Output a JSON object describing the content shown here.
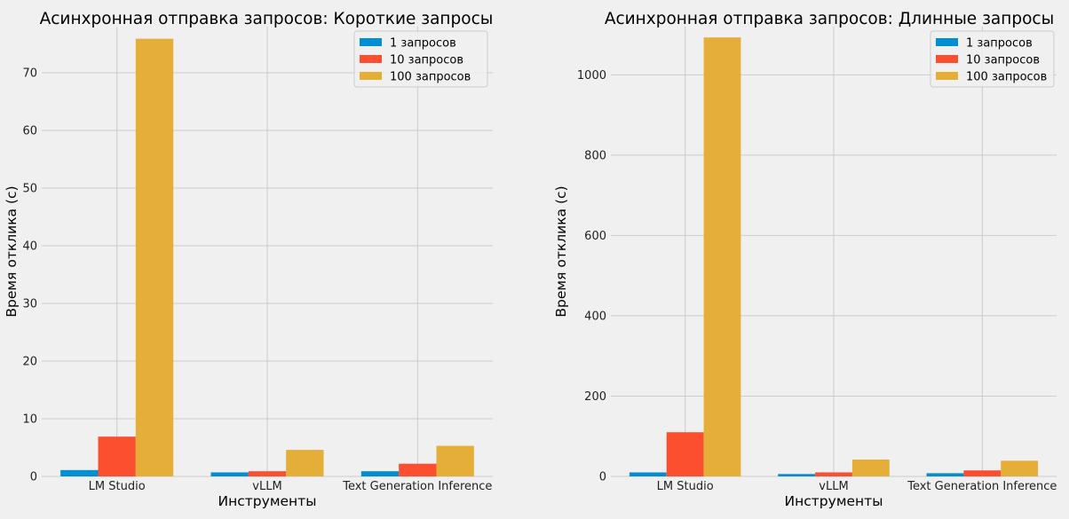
{
  "chart_data": [
    {
      "type": "bar",
      "title": "Асинхронная отправка запросов: Короткие запросы",
      "xlabel": "Инструменты",
      "ylabel": "Время отклика (с)",
      "categories": [
        "LM Studio",
        "vLLM",
        "Text Generation Inference"
      ],
      "series": [
        {
          "name": "1 запросов",
          "values": [
            1.1,
            0.7,
            0.9
          ]
        },
        {
          "name": "10 запросов",
          "values": [
            6.9,
            0.9,
            2.2
          ]
        },
        {
          "name": "100 запросов",
          "values": [
            75.9,
            4.6,
            5.3
          ]
        }
      ],
      "ylim": [
        0,
        78
      ],
      "yticks": [
        0,
        10,
        20,
        30,
        40,
        50,
        60,
        70
      ],
      "grid": true,
      "legend": "top-right"
    },
    {
      "type": "bar",
      "title": "Асинхронная отправка запросов: Длинные запросы",
      "xlabel": "Инструменты",
      "ylabel": "Время отклика (с)",
      "categories": [
        "LM Studio",
        "vLLM",
        "Text Generation Inference"
      ],
      "series": [
        {
          "name": "1 запросов",
          "values": [
            10,
            6,
            8
          ]
        },
        {
          "name": "10 запросов",
          "values": [
            110,
            10,
            15
          ]
        },
        {
          "name": "100 запросов",
          "values": [
            1093,
            42,
            39
          ]
        }
      ],
      "ylim": [
        0,
        1120
      ],
      "yticks": [
        0,
        200,
        400,
        600,
        800,
        1000
      ],
      "grid": true,
      "legend": "top-right"
    }
  ],
  "colors": [
    "#008fd5",
    "#fc4f30",
    "#e5ae38"
  ]
}
